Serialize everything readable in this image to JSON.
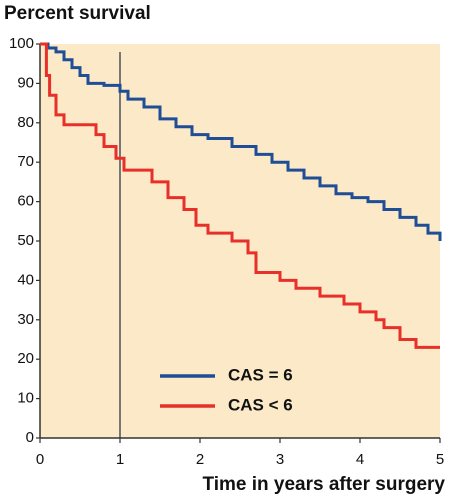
{
  "chart_data": {
    "type": "step",
    "title": "Percent survival",
    "x_label": "Time in years after surgery",
    "xlim": [
      0,
      5
    ],
    "ylim": [
      0,
      100
    ],
    "xticks": [
      0,
      1,
      2,
      3,
      4,
      5
    ],
    "yticks": [
      0,
      10,
      20,
      30,
      40,
      50,
      60,
      70,
      80,
      90,
      100
    ],
    "vline": 1,
    "background": "#fbe9c8",
    "legend": "bottom-left",
    "series": [
      {
        "name": "CAS = 6",
        "color": "#1f4e96",
        "x": [
          0,
          0.1,
          0.2,
          0.3,
          0.4,
          0.5,
          0.6,
          0.8,
          1.0,
          1.1,
          1.3,
          1.5,
          1.7,
          1.9,
          2.1,
          2.4,
          2.7,
          2.9,
          3.1,
          3.3,
          3.5,
          3.7,
          3.9,
          4.1,
          4.3,
          4.5,
          4.7,
          4.85,
          5.0
        ],
        "values": [
          100,
          99,
          98,
          96,
          94,
          92,
          90,
          89.5,
          88,
          86,
          84,
          81,
          79,
          77,
          76,
          74,
          72,
          70,
          68,
          66,
          64,
          62,
          61,
          60,
          58,
          56,
          54,
          52,
          50
        ]
      },
      {
        "name": "CAS < 6",
        "color": "#e8302a",
        "x": [
          0,
          0.08,
          0.12,
          0.2,
          0.3,
          0.7,
          0.8,
          0.95,
          1.05,
          1.4,
          1.6,
          1.8,
          1.95,
          2.1,
          2.4,
          2.6,
          2.7,
          3.0,
          3.2,
          3.5,
          3.8,
          4.0,
          4.2,
          4.3,
          4.5,
          4.7,
          5.0
        ],
        "values": [
          100,
          92,
          87,
          82,
          79.5,
          77,
          74,
          71,
          68,
          65,
          61,
          58,
          54,
          52,
          50,
          47,
          42,
          40,
          38,
          36,
          34,
          32,
          30,
          28,
          25,
          23,
          23
        ]
      }
    ]
  }
}
